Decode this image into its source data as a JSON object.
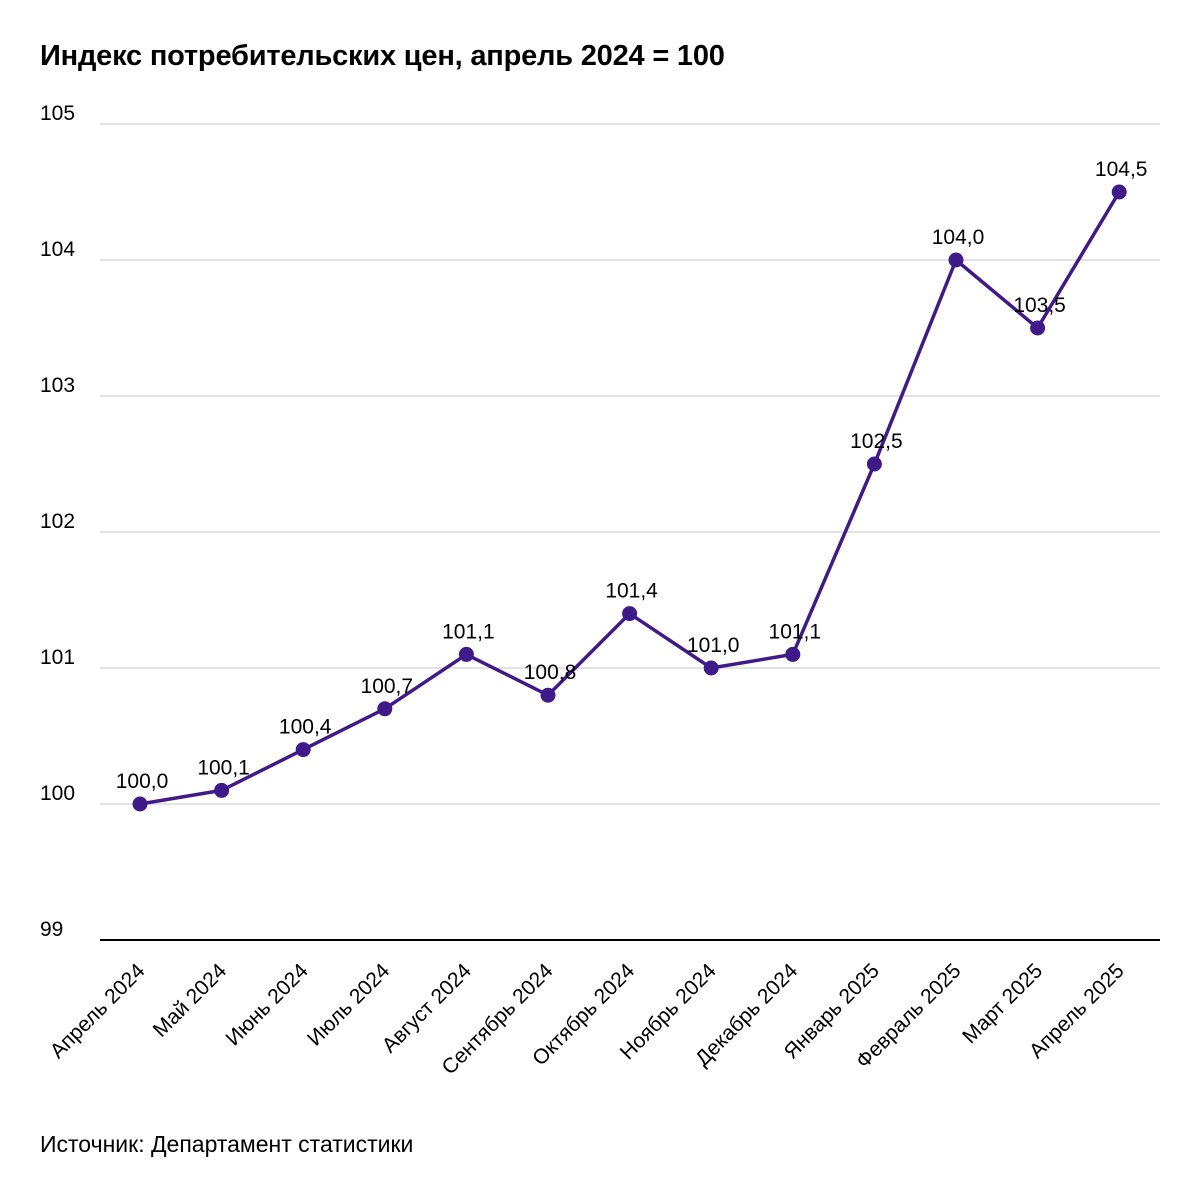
{
  "title": "Индекс потребительских цен, апрель 2024 = 100",
  "source": "Источник: Департамент статистики",
  "colors": {
    "line": "#3f1a8a",
    "grid": "#d9d9d9",
    "axis": "#000000"
  },
  "chart_data": {
    "type": "line",
    "title": "Индекс потребительских цен, апрель 2024 = 100",
    "xlabel": "",
    "ylabel": "",
    "ylim": [
      99,
      105
    ],
    "yticks": [
      99,
      100,
      101,
      102,
      103,
      104,
      105
    ],
    "grid": true,
    "legend": "none",
    "categories": [
      "Апрель 2024",
      "Май 2024",
      "Июнь 2024",
      "Июль 2024",
      "Август 2024",
      "Сентябрь 2024",
      "Октябрь 2024",
      "Ноябрь 2024",
      "Декабрь 2024",
      "Январь 2025",
      "Февраль 2025",
      "Март 2025",
      "Апрель 2025"
    ],
    "series": [
      {
        "values": [
          100.0,
          100.1,
          100.4,
          100.7,
          101.1,
          100.8,
          101.4,
          101.0,
          101.1,
          102.5,
          104.0,
          103.5,
          104.5
        ],
        "labels": [
          "100,0",
          "100,1",
          "100,4",
          "100,7",
          "101,1",
          "100,8",
          "101,4",
          "101,0",
          "101,1",
          "102,5",
          "104,0",
          "103,5",
          "104,5"
        ]
      }
    ]
  }
}
